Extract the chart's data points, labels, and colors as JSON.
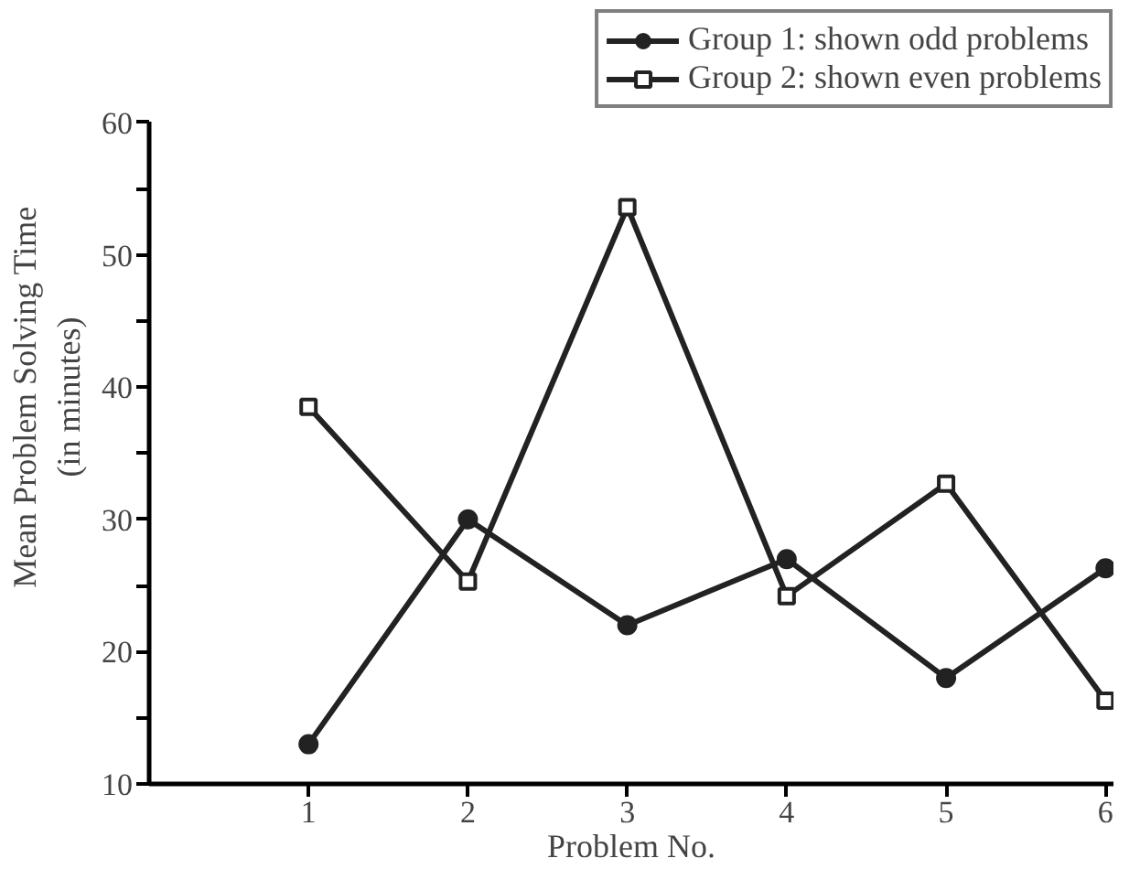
{
  "chart_data": {
    "type": "line",
    "xlabel": "Problem No.",
    "ylabel": "Mean Problem Solving Time\n(in minutes)",
    "x": [
      1,
      2,
      3,
      4,
      5,
      6
    ],
    "series": [
      {
        "name": "Group 1: shown odd problems",
        "color": "#222222",
        "marker": "circle",
        "values": [
          13,
          30,
          22,
          27,
          18,
          26.3
        ]
      },
      {
        "name": "Group 2: shown even problems",
        "color": "#222222",
        "marker": "square",
        "values": [
          38.5,
          25.3,
          53.6,
          24.2,
          32.7,
          16.3
        ]
      }
    ],
    "xlim": [
      0,
      6.05
    ],
    "xticks": [
      1,
      2,
      3,
      4,
      5,
      6
    ],
    "ylim": [
      10,
      60
    ],
    "yticks": [
      10,
      {
        "value": 15,
        "label": null
      },
      20,
      {
        "value": 25,
        "label": null
      },
      30,
      {
        "value": 35,
        "label": null
      },
      40,
      {
        "value": 45,
        "label": null
      },
      50,
      {
        "value": 55,
        "label": null
      },
      60
    ],
    "grid": false,
    "legend": "top right",
    "line_style": "solid"
  }
}
